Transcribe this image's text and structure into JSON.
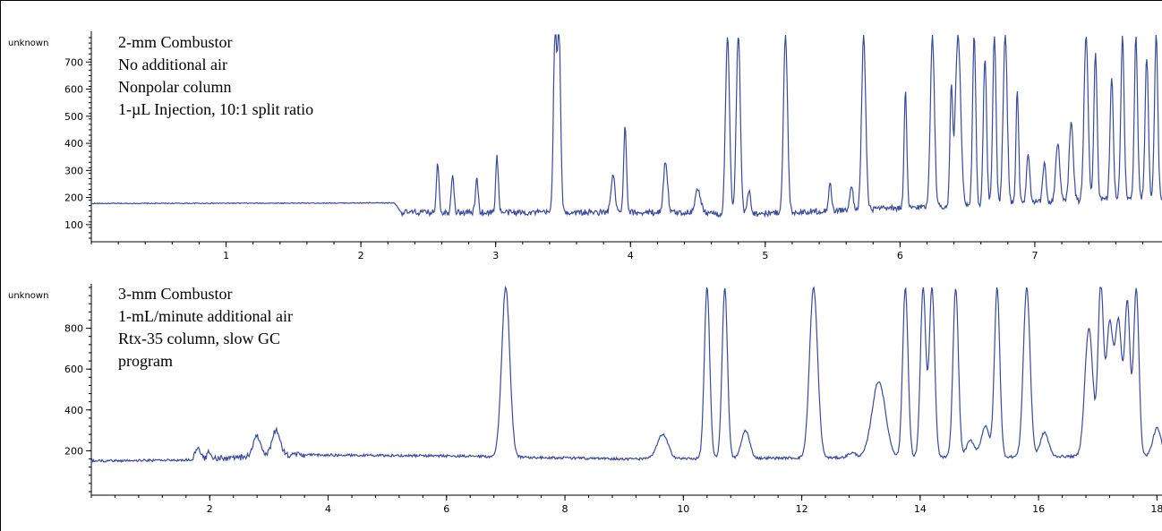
{
  "colors": {
    "trace": "#3b4a9c",
    "axis": "#000000"
  },
  "chart_data": [
    {
      "type": "line",
      "ylabel": "unknown",
      "annotations": [
        "2-mm Combustor",
        "No additional air",
        "Nonpolar column",
        "1-µL Injection, 10:1 split ratio"
      ],
      "xlim": [
        0,
        7.95
      ],
      "ylim": [
        50,
        800
      ],
      "xticks": [
        1,
        2,
        3,
        4,
        5,
        6,
        7
      ],
      "yticks": [
        100,
        200,
        300,
        400,
        500,
        600,
        700
      ],
      "baseline": [
        [
          0,
          178
        ],
        [
          2.25,
          180
        ],
        [
          2.3,
          145
        ],
        [
          4.6,
          145
        ],
        [
          4.65,
          135
        ],
        [
          7.95,
          200
        ]
      ],
      "peaks": [
        [
          2.57,
          330,
          0.01
        ],
        [
          2.68,
          290,
          0.01
        ],
        [
          2.86,
          270,
          0.01
        ],
        [
          3.01,
          350,
          0.01
        ],
        [
          3.44,
          800,
          0.012
        ],
        [
          3.47,
          800,
          0.012
        ],
        [
          3.87,
          280,
          0.015
        ],
        [
          3.96,
          470,
          0.01
        ],
        [
          4.26,
          335,
          0.015
        ],
        [
          4.5,
          230,
          0.02
        ],
        [
          4.72,
          800,
          0.015
        ],
        [
          4.8,
          800,
          0.015
        ],
        [
          4.88,
          230,
          0.012
        ],
        [
          5.15,
          800,
          0.015
        ],
        [
          5.48,
          260,
          0.01
        ],
        [
          5.64,
          240,
          0.012
        ],
        [
          5.73,
          800,
          0.015
        ],
        [
          6.04,
          590,
          0.01
        ],
        [
          6.24,
          800,
          0.015
        ],
        [
          6.38,
          600,
          0.01
        ],
        [
          6.43,
          800,
          0.02
        ],
        [
          6.55,
          800,
          0.012
        ],
        [
          6.63,
          720,
          0.012
        ],
        [
          6.7,
          800,
          0.012
        ],
        [
          6.78,
          800,
          0.015
        ],
        [
          6.87,
          600,
          0.01
        ],
        [
          6.95,
          360,
          0.012
        ],
        [
          7.07,
          330,
          0.012
        ],
        [
          7.17,
          400,
          0.015
        ],
        [
          7.27,
          480,
          0.015
        ],
        [
          7.38,
          800,
          0.015
        ],
        [
          7.45,
          740,
          0.012
        ],
        [
          7.57,
          650,
          0.012
        ],
        [
          7.65,
          800,
          0.012
        ],
        [
          7.75,
          800,
          0.012
        ],
        [
          7.83,
          720,
          0.012
        ],
        [
          7.9,
          800,
          0.012
        ]
      ]
    },
    {
      "type": "line",
      "ylabel": "unknown",
      "annotations": [
        "3-mm Combustor",
        "1-mL/minute additional air",
        "Rtx-35 column, slow GC",
        "program"
      ],
      "xlim": [
        0,
        18.1
      ],
      "ylim": [
        0,
        1000
      ],
      "xticks": [
        2,
        4,
        6,
        8,
        10,
        12,
        14,
        16,
        18
      ],
      "yticks": [
        200,
        400,
        600,
        800
      ],
      "baseline": [
        [
          0,
          150
        ],
        [
          1.7,
          155
        ],
        [
          3.5,
          180
        ],
        [
          6,
          175
        ],
        [
          9,
          160
        ],
        [
          12,
          165
        ],
        [
          18.1,
          175
        ]
      ],
      "peaks": [
        [
          1.8,
          210,
          0.02
        ],
        [
          2.0,
          200,
          0.015
        ],
        [
          2.8,
          270,
          0.03
        ],
        [
          3.12,
          300,
          0.03
        ],
        [
          7.0,
          1000,
          0.03
        ],
        [
          9.65,
          280,
          0.04
        ],
        [
          10.4,
          1000,
          0.02
        ],
        [
          10.7,
          1000,
          0.02
        ],
        [
          11.05,
          300,
          0.03
        ],
        [
          12.2,
          1000,
          0.03
        ],
        [
          12.85,
          190,
          0.03
        ],
        [
          13.3,
          540,
          0.05
        ],
        [
          13.75,
          1000,
          0.02
        ],
        [
          14.05,
          1000,
          0.02
        ],
        [
          14.2,
          1000,
          0.02
        ],
        [
          14.6,
          1000,
          0.02
        ],
        [
          14.85,
          250,
          0.03
        ],
        [
          15.1,
          320,
          0.03
        ],
        [
          15.3,
          1000,
          0.02
        ],
        [
          15.8,
          1000,
          0.025
        ],
        [
          16.1,
          290,
          0.03
        ],
        [
          16.85,
          800,
          0.03
        ],
        [
          17.05,
          1000,
          0.02
        ],
        [
          17.2,
          820,
          0.025
        ],
        [
          17.35,
          830,
          0.025
        ],
        [
          17.5,
          920,
          0.02
        ],
        [
          17.65,
          1000,
          0.02
        ],
        [
          18.0,
          310,
          0.03
        ]
      ]
    }
  ]
}
